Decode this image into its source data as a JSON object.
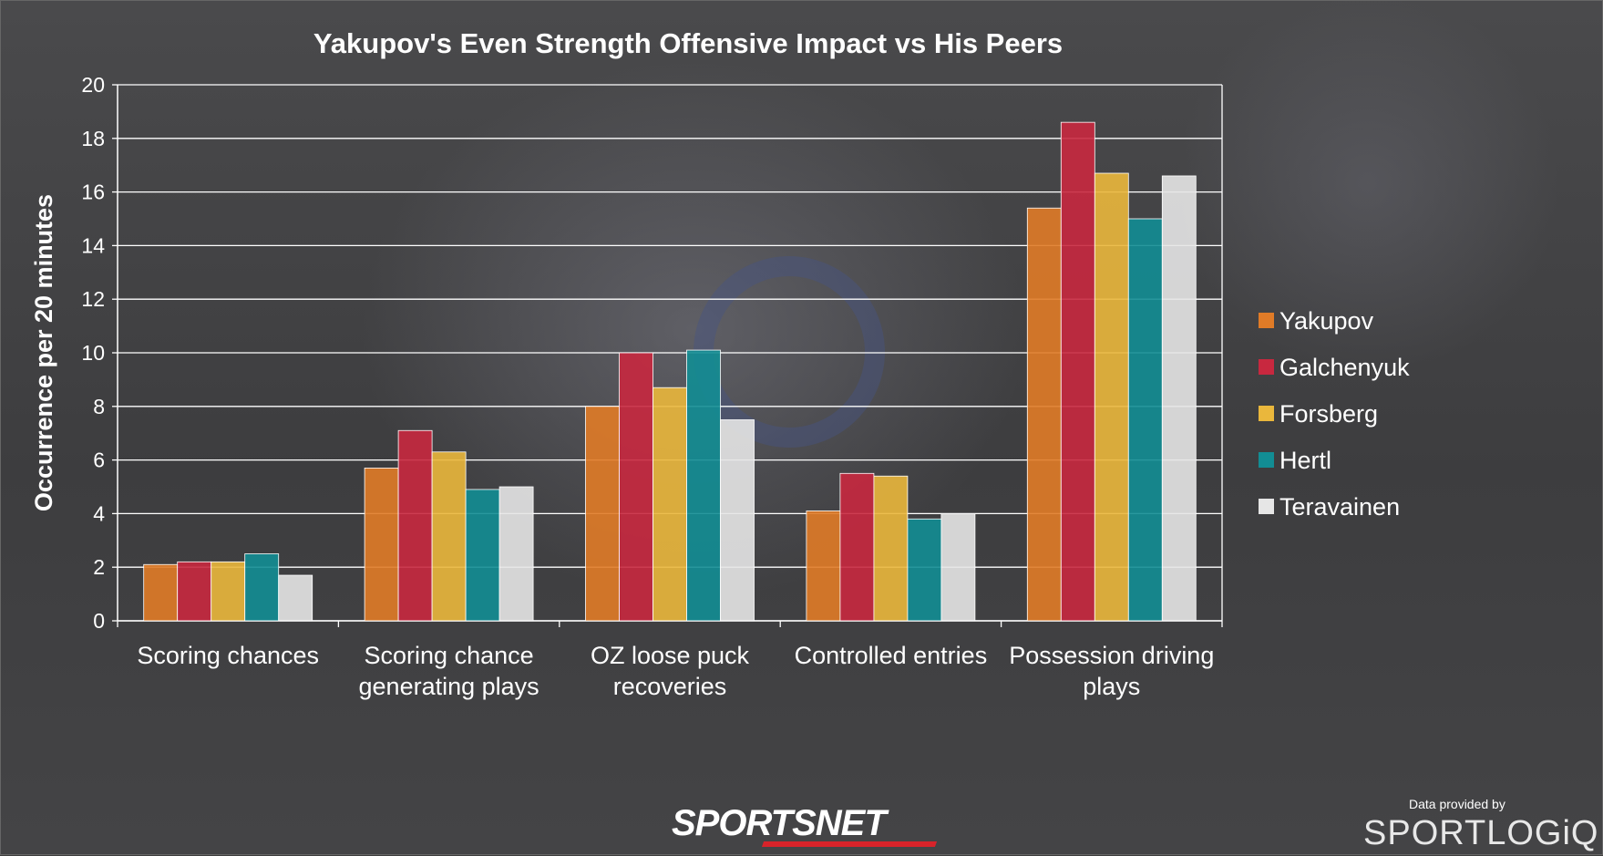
{
  "chart_data": {
    "type": "bar",
    "title": "Yakupov's Even Strength Offensive Impact vs His Peers",
    "ylabel": "Occurrence per 20 minutes",
    "xlabel": "",
    "ylim": [
      0,
      20
    ],
    "yticks": [
      0,
      2,
      4,
      6,
      8,
      10,
      12,
      14,
      16,
      18,
      20
    ],
    "grid": true,
    "legend_position": "right",
    "categories": [
      [
        "Scoring chances"
      ],
      [
        "Scoring chance",
        "generating plays"
      ],
      [
        "OZ loose puck",
        "recoveries"
      ],
      [
        "Controlled entries"
      ],
      [
        "Possession driving",
        "plays"
      ]
    ],
    "series": [
      {
        "name": "Yakupov",
        "color": "#e07b27",
        "values": [
          2.1,
          5.7,
          8.0,
          4.1,
          15.4
        ]
      },
      {
        "name": "Galchenyuk",
        "color": "#c8283f",
        "values": [
          2.2,
          7.1,
          10.0,
          5.5,
          18.6
        ]
      },
      {
        "name": "Forsberg",
        "color": "#eab73c",
        "values": [
          2.2,
          6.3,
          8.7,
          5.4,
          16.7
        ]
      },
      {
        "name": "Hertl",
        "color": "#128d94",
        "values": [
          2.5,
          4.9,
          10.1,
          3.8,
          15.0
        ]
      },
      {
        "name": "Teravainen",
        "color": "#e6e6e6",
        "values": [
          1.7,
          5.0,
          7.5,
          4.0,
          16.6
        ]
      }
    ]
  },
  "branding": {
    "network": "SPORTSNET",
    "credit_text": "Data provided by",
    "credit_logo": "SPORTLOGiQ"
  }
}
